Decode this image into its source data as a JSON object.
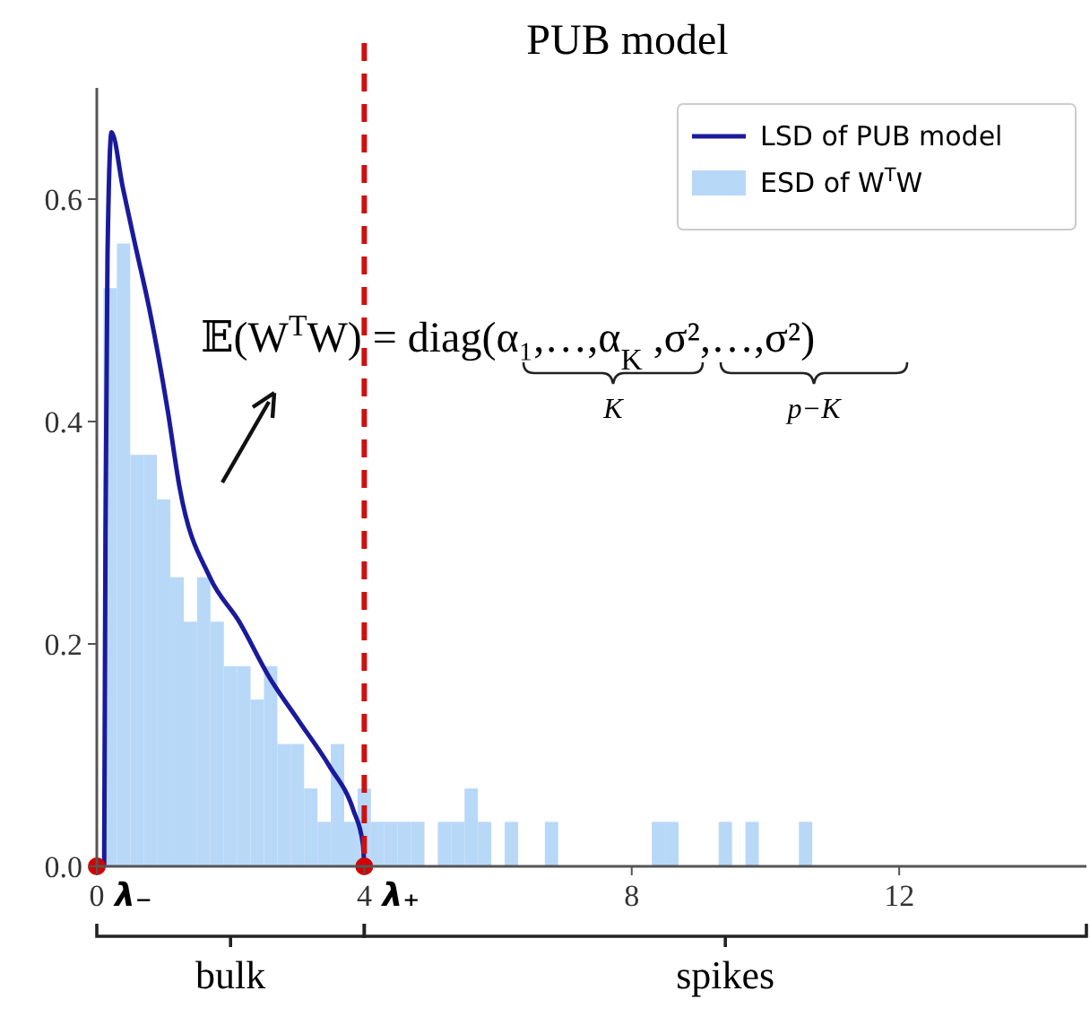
{
  "chart_data": {
    "type": "histogram",
    "title": "PUB model",
    "bins": [
      0.1,
      0.3,
      0.5,
      0.7,
      0.9,
      1.1,
      1.3,
      1.5,
      1.7,
      1.9,
      2.1,
      2.3,
      2.5,
      2.7,
      2.9,
      3.1,
      3.3,
      3.5,
      3.7,
      3.9,
      4.1,
      4.3,
      4.5,
      4.7,
      4.9,
      5.1,
      5.3,
      5.5,
      5.7,
      5.9,
      6.1,
      6.3,
      6.5,
      6.7,
      6.9,
      7.1,
      7.3,
      7.5,
      7.7,
      7.9,
      8.1,
      8.3,
      8.5,
      8.7,
      8.9,
      9.1,
      9.3,
      9.5,
      9.7,
      9.9,
      10.1,
      10.3,
      10.5,
      10.7
    ],
    "series": [
      {
        "name": "ESD of W$^{T}$W",
        "color": "#b8d8f8",
        "values": [
          0.52,
          0.56,
          0.37,
          0.37,
          0.33,
          0.26,
          0.22,
          0.26,
          0.22,
          0.18,
          0.18,
          0.15,
          0.18,
          0.11,
          0.11,
          0.07,
          0.04,
          0.11,
          0.04,
          0.07,
          0.04,
          0.04,
          0.04,
          0.04,
          0,
          0.04,
          0.04,
          0.07,
          0.04,
          0,
          0.04,
          0,
          0,
          0.04,
          0,
          0,
          0,
          0,
          0,
          0,
          0,
          0.04,
          0.04,
          0,
          0,
          0,
          0.04,
          0,
          0.04,
          0,
          0,
          0,
          0.04
        ]
      },
      {
        "name": "LSD of PUB model",
        "type": "line",
        "color": "#1a1a9c",
        "x": [
          0.11,
          0.13,
          0.16,
          0.22,
          0.39,
          0.57,
          0.79,
          1.06,
          1.24,
          1.69,
          2.13,
          2.58,
          3.03,
          3.48,
          3.84,
          3.98,
          4.0
        ],
        "values": [
          0,
          0.3,
          0.55,
          0.66,
          0.61,
          0.56,
          0.5,
          0.41,
          0.34,
          0.26,
          0.22,
          0.17,
          0.13,
          0.09,
          0.05,
          0.02,
          0
        ]
      },
      {
        "type": "scatter",
        "color": "#d40000",
        "x": [
          0,
          4
        ],
        "values": [
          0,
          0
        ],
        "marker": "circle"
      }
    ],
    "xlim": [
      0,
      14.8
    ],
    "ylim": [
      0,
      0.7
    ],
    "xticks": [
      0,
      4,
      8,
      12
    ],
    "yticks": [
      {
        "value": 0,
        "label": "0.0"
      },
      {
        "value": 0.2,
        "label": "0.2"
      },
      {
        "value": 0.4,
        "label": "0.4"
      },
      {
        "value": 0.6,
        "label": "0.6"
      }
    ],
    "ref_lines": [
      {
        "axis": "x",
        "value": 4,
        "color": "#cc1111",
        "line_style": "dashed"
      }
    ],
    "annotations": [
      {
        "text": "λ₋",
        "x": 0,
        "y": 0
      },
      {
        "text": "λ₊",
        "x": 4,
        "y": 0
      },
      "bulk",
      "spikes",
      "𝔼(W$^{T}$W) = diag(α₁,…,α$_{K}$ ,σ²,…,σ²)",
      "K",
      "p−K"
    ],
    "legend": "top right",
    "grid": false
  }
}
